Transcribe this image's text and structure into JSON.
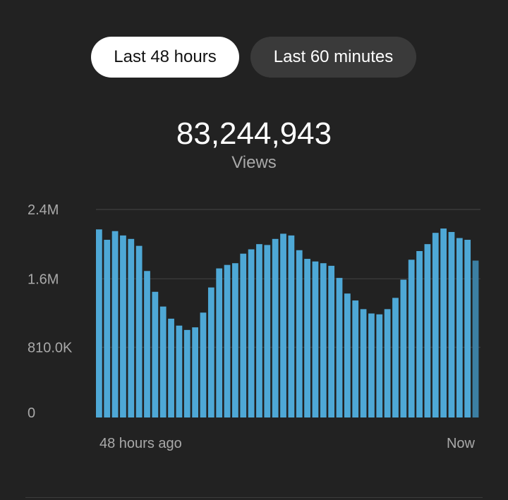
{
  "tabs": {
    "last_48_hours": "Last 48 hours",
    "last_60_minutes": "Last 60 minutes"
  },
  "summary": {
    "total": "83,244,943",
    "label": "Views"
  },
  "colors": {
    "background": "#222222",
    "bar": "#4ea8d6",
    "bar_current": "#3c7fa3",
    "gridline": "#3a3a3a",
    "muted_text": "#a9a9a9"
  },
  "chart_data": {
    "type": "bar",
    "ylim": [
      0,
      2400000
    ],
    "yticks": [
      {
        "value": 0,
        "label": "0"
      },
      {
        "value": 810000,
        "label": "810.0K"
      },
      {
        "value": 1600000,
        "label": "1.6M"
      },
      {
        "value": 2400000,
        "label": "2.4M"
      }
    ],
    "xlabels": [
      "48 hours ago",
      "Now"
    ],
    "grid": true,
    "values": [
      2170000,
      2050000,
      2150000,
      2100000,
      2060000,
      1980000,
      1690000,
      1450000,
      1280000,
      1140000,
      1060000,
      1010000,
      1040000,
      1210000,
      1500000,
      1720000,
      1760000,
      1780000,
      1890000,
      1940000,
      2000000,
      1990000,
      2060000,
      2120000,
      2100000,
      1930000,
      1830000,
      1800000,
      1780000,
      1750000,
      1610000,
      1430000,
      1350000,
      1250000,
      1200000,
      1190000,
      1250000,
      1380000,
      1590000,
      1820000,
      1920000,
      2000000,
      2130000,
      2180000,
      2140000,
      2070000,
      2050000,
      1810000
    ],
    "current_partial_index": 47
  }
}
